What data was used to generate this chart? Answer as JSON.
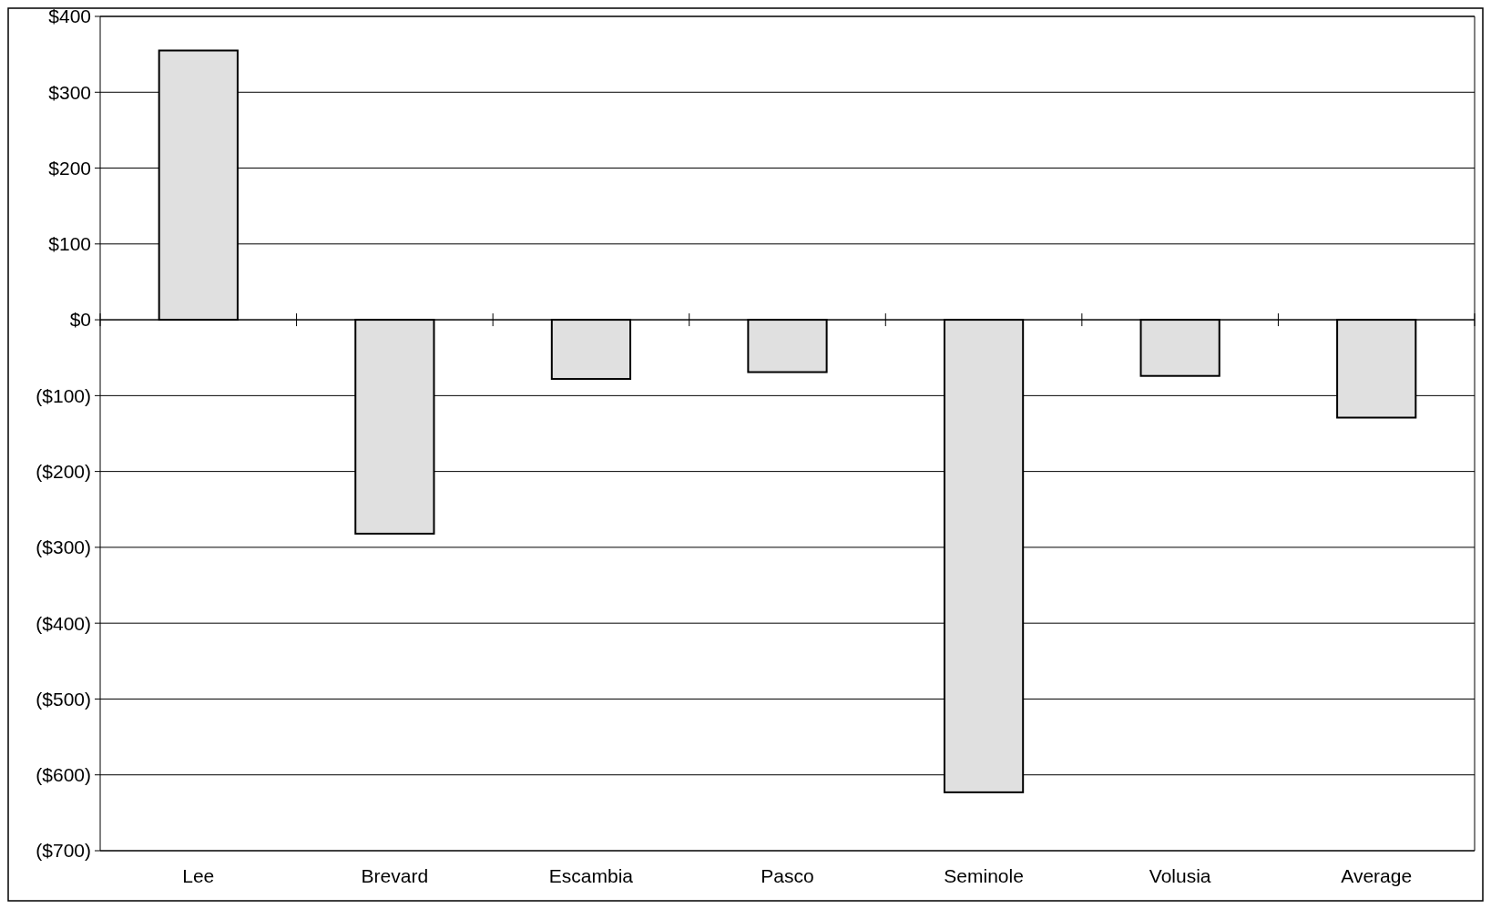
{
  "chart_data": {
    "type": "bar",
    "categories": [
      "Lee",
      "Brevard",
      "Escambia",
      "Pasco",
      "Seminole",
      "Volusia",
      "Average"
    ],
    "values": [
      355,
      -282,
      -78,
      -69,
      -623,
      -74,
      -129
    ],
    "color": "#e0e0e0",
    "ylim": [
      -700,
      400
    ],
    "yticks": [
      {
        "value": -700,
        "label": "($700)"
      },
      {
        "value": -600,
        "label": "($600)"
      },
      {
        "value": -500,
        "label": "($500)"
      },
      {
        "value": -400,
        "label": "($400)"
      },
      {
        "value": -300,
        "label": "($300)"
      },
      {
        "value": -200,
        "label": "($200)"
      },
      {
        "value": -100,
        "label": "($100)"
      },
      {
        "value": 0,
        "label": "$0"
      },
      {
        "value": 100,
        "label": "$100"
      },
      {
        "value": 200,
        "label": "$200"
      },
      {
        "value": 300,
        "label": "$300"
      },
      {
        "value": 400,
        "label": "$400"
      }
    ],
    "grid": "y"
  }
}
